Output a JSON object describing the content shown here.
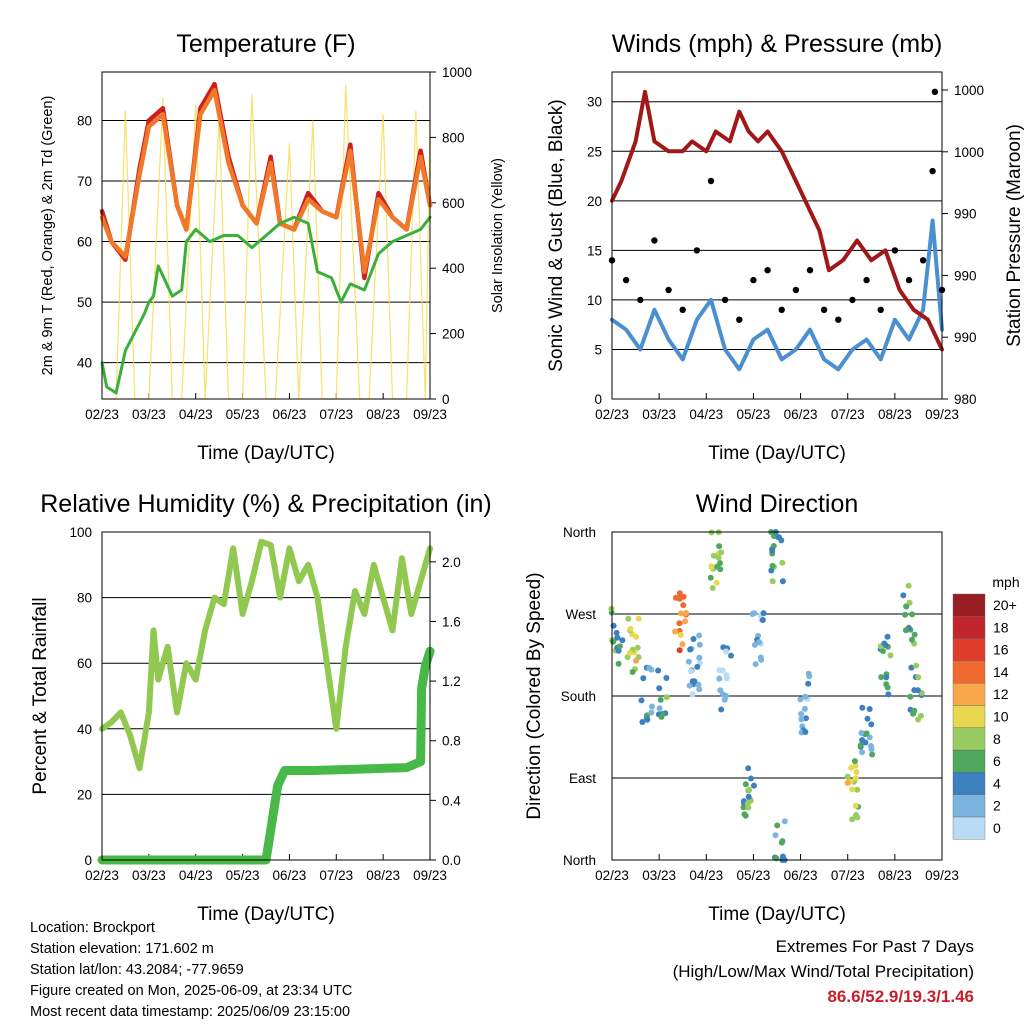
{
  "chart_data": [
    {
      "type": "line",
      "title": "Temperature (F)",
      "xlabel": "Time (Day/UTC)",
      "ylabel": "2m & 9m T (Red, Orange) & 2m Td (Green)",
      "ylabel_right": "Solar Insolation (Yellow)",
      "x_ticks": [
        "02/23",
        "03/23",
        "04/23",
        "05/23",
        "06/23",
        "07/23",
        "08/23",
        "09/23"
      ],
      "ylim": [
        34,
        88
      ],
      "y_ticks": [
        40,
        50,
        60,
        70,
        80
      ],
      "ylim_right": [
        0,
        1000
      ],
      "y_ticks_right": [
        0,
        200,
        400,
        600,
        800,
        1000
      ],
      "grid": true,
      "series": [
        {
          "name": "2m T",
          "color": "#cc2020",
          "x": [
            0,
            0.2,
            0.5,
            0.8,
            1,
            1.3,
            1.6,
            1.8,
            2.1,
            2.4,
            2.7,
            3,
            3.3,
            3.6,
            3.8,
            4.1,
            4.4,
            4.7,
            5,
            5.3,
            5.6,
            5.9,
            6.2,
            6.5,
            6.8,
            7
          ],
          "values": [
            65,
            60,
            57,
            72,
            80,
            82,
            66,
            62,
            82,
            86,
            74,
            66,
            63,
            74,
            63,
            62,
            68,
            65,
            64,
            76,
            54,
            68,
            64,
            62,
            75,
            66
          ]
        },
        {
          "name": "9m T",
          "color": "#f07828",
          "x": [
            0,
            0.2,
            0.5,
            0.8,
            1,
            1.3,
            1.6,
            1.8,
            2.1,
            2.4,
            2.7,
            3,
            3.3,
            3.6,
            3.8,
            4.1,
            4.4,
            4.7,
            5,
            5.3,
            5.6,
            5.9,
            6.2,
            6.5,
            6.8,
            7
          ],
          "values": [
            64,
            60,
            57.5,
            71,
            79,
            81,
            66,
            62,
            81,
            85,
            73,
            66,
            63,
            73,
            63,
            62,
            67,
            65,
            64,
            75,
            55,
            67,
            64,
            62,
            74,
            66
          ]
        },
        {
          "name": "2m Td",
          "color": "#3ab03a",
          "x": [
            0,
            0.1,
            0.3,
            0.5,
            0.7,
            0.9,
            1,
            1.1,
            1.2,
            1.5,
            1.7,
            1.8,
            2,
            2.3,
            2.6,
            2.9,
            3.2,
            3.5,
            3.8,
            4.1,
            4.4,
            4.6,
            4.9,
            5.1,
            5.3,
            5.6,
            5.9,
            6.2,
            6.5,
            6.8,
            7
          ],
          "values": [
            40,
            36,
            35,
            42,
            45,
            48,
            50,
            51,
            56,
            51,
            52,
            60,
            62,
            60,
            61,
            61,
            59,
            61,
            63,
            64,
            63,
            55,
            54,
            50,
            53,
            52,
            58,
            60,
            61,
            62,
            64
          ]
        },
        {
          "name": "Solar Insolation",
          "color": "#f8dc50",
          "axis": "right",
          "x": [
            0,
            0.3,
            0.5,
            0.7,
            1,
            1.3,
            1.5,
            1.7,
            2,
            2.2,
            2.5,
            2.7,
            3,
            3.2,
            3.5,
            3.7,
            4,
            4.2,
            4.5,
            4.7,
            5,
            5.2,
            5.5,
            5.7,
            6,
            6.2,
            6.5,
            6.7,
            6.9,
            7
          ],
          "values": [
            0,
            0,
            880,
            0,
            0,
            920,
            0,
            0,
            900,
            0,
            860,
            0,
            0,
            930,
            0,
            0,
            780,
            0,
            850,
            0,
            0,
            960,
            0,
            0,
            870,
            0,
            0,
            880,
            0,
            850
          ]
        }
      ]
    },
    {
      "type": "line",
      "title": "Winds (mph) & Pressure (mb)",
      "xlabel": "Time (Day/UTC)",
      "ylabel": "Sonic Wind & Gust (Blue, Black)",
      "ylabel_right": "Station Pressure (Maroon)",
      "x_ticks": [
        "02/23",
        "03/23",
        "04/23",
        "05/23",
        "06/23",
        "07/23",
        "08/23",
        "09/23"
      ],
      "ylim": [
        0,
        33
      ],
      "y_ticks": [
        0,
        5,
        10,
        15,
        20,
        25,
        30
      ],
      "y_ticks_right": [
        "980",
        "990",
        "990",
        "990",
        "1000",
        "1000"
      ],
      "grid": true,
      "series": [
        {
          "name": "Sonic Wind",
          "color": "#4a90d0",
          "x": [
            0,
            0.3,
            0.6,
            0.9,
            1.2,
            1.5,
            1.8,
            2.1,
            2.4,
            2.7,
            3,
            3.3,
            3.6,
            3.9,
            4.2,
            4.5,
            4.8,
            5.1,
            5.4,
            5.7,
            6,
            6.3,
            6.6,
            6.8,
            7
          ],
          "values": [
            8,
            7,
            5,
            9,
            6,
            4,
            8,
            10,
            5,
            3,
            6,
            7,
            4,
            5,
            7,
            4,
            3,
            5,
            6,
            4,
            8,
            6,
            9,
            18,
            7
          ]
        },
        {
          "name": "Gust",
          "color": "#000000",
          "x": [
            0,
            0.3,
            0.6,
            0.9,
            1.2,
            1.5,
            1.8,
            2.1,
            2.4,
            2.7,
            3,
            3.3,
            3.6,
            3.9,
            4.2,
            4.5,
            4.8,
            5.1,
            5.4,
            5.7,
            6,
            6.3,
            6.6,
            6.8,
            6.85,
            7
          ],
          "values": [
            14,
            12,
            10,
            16,
            11,
            9,
            15,
            22,
            10,
            8,
            12,
            13,
            9,
            11,
            13,
            9,
            8,
            10,
            12,
            9,
            15,
            12,
            14,
            23,
            31,
            11
          ]
        },
        {
          "name": "Station Pressure",
          "color": "#a01818",
          "axis": "right",
          "x": [
            0,
            0.2,
            0.5,
            0.7,
            0.9,
            1.2,
            1.5,
            1.7,
            2,
            2.2,
            2.5,
            2.7,
            2.9,
            3.1,
            3.3,
            3.6,
            3.9,
            4.1,
            4.4,
            4.6,
            4.9,
            5.2,
            5.5,
            5.8,
            6.1,
            6.4,
            6.7,
            7
          ],
          "values": [
            20,
            22,
            26,
            31,
            26,
            25,
            25,
            26,
            25,
            27,
            26,
            29,
            27,
            26,
            27,
            25,
            22,
            20,
            17,
            13,
            14,
            16,
            14,
            15,
            11,
            9,
            8,
            5
          ]
        }
      ]
    },
    {
      "type": "line",
      "title": "Relative Humidity (%) & Precipitation (in)",
      "xlabel": "Time (Day/UTC)",
      "ylabel": "Percent & Total Rainfall",
      "x_ticks": [
        "02/23",
        "03/23",
        "04/23",
        "05/23",
        "06/23",
        "07/23",
        "08/23",
        "09/23"
      ],
      "ylim": [
        0,
        100
      ],
      "y_ticks": [
        0,
        20,
        40,
        60,
        80,
        100
      ],
      "ylim_right": [
        0,
        2.2
      ],
      "y_ticks_right": [
        "0.0",
        "0.4",
        "0.8",
        "1.2",
        "1.6",
        "2.0"
      ],
      "grid": true,
      "series": [
        {
          "name": "Relative Humidity",
          "color": "#90c850",
          "x": [
            0,
            0.2,
            0.4,
            0.6,
            0.8,
            1,
            1.1,
            1.2,
            1.4,
            1.6,
            1.8,
            2,
            2.2,
            2.4,
            2.6,
            2.8,
            3,
            3.2,
            3.4,
            3.6,
            3.8,
            4,
            4.2,
            4.4,
            4.6,
            4.8,
            5,
            5.2,
            5.4,
            5.6,
            5.8,
            6,
            6.2,
            6.4,
            6.6,
            6.8,
            7
          ],
          "values": [
            40,
            42,
            45,
            38,
            28,
            45,
            70,
            55,
            65,
            45,
            60,
            55,
            70,
            80,
            78,
            95,
            75,
            85,
            97,
            96,
            80,
            95,
            85,
            90,
            80,
            60,
            40,
            65,
            82,
            75,
            90,
            80,
            70,
            92,
            75,
            85,
            95
          ]
        },
        {
          "name": "Total Rainfall",
          "color": "#48b848",
          "axis": "right",
          "x": [
            0,
            1,
            2,
            3,
            3.5,
            3.6,
            3.75,
            3.9,
            4.5,
            5.5,
            6.5,
            6.8,
            6.82,
            6.9,
            7
          ],
          "values": [
            0,
            0,
            0,
            0,
            0,
            0.2,
            0.5,
            0.6,
            0.6,
            0.61,
            0.62,
            0.66,
            1.15,
            1.3,
            1.4
          ]
        }
      ]
    },
    {
      "type": "scatter",
      "title": "Wind Direction",
      "xlabel": "Time (Day/UTC)",
      "ylabel": "Direction (Colored By Speed)",
      "x_ticks": [
        "02/23",
        "03/23",
        "04/23",
        "05/23",
        "06/23",
        "07/23",
        "08/23",
        "09/23"
      ],
      "y_ticks": [
        "North",
        "East",
        "South",
        "West",
        "North"
      ],
      "ylim": [
        0,
        360
      ],
      "grid": true,
      "colorbar": {
        "title": "mph",
        "labels": [
          "20+",
          "18",
          "16",
          "14",
          "12",
          "10",
          "8",
          "6",
          "4",
          "2",
          "0"
        ],
        "colors": [
          "#981e24",
          "#c0262c",
          "#e03c2c",
          "#f06a30",
          "#f8a848",
          "#e8d850",
          "#98cc60",
          "#50a860",
          "#3c80c0",
          "#7cb4e0",
          "#b8dcf4"
        ]
      },
      "clusters": [
        {
          "x": 0.1,
          "dir": 245,
          "speed": 6,
          "n": 14
        },
        {
          "x": 0.45,
          "dir": 235,
          "speed": 9,
          "n": 16
        },
        {
          "x": 0.75,
          "dir": 185,
          "speed": 4,
          "n": 12
        },
        {
          "x": 1.1,
          "dir": 190,
          "speed": 5,
          "n": 10
        },
        {
          "x": 1.45,
          "dir": 260,
          "speed": 13,
          "n": 16
        },
        {
          "x": 1.75,
          "dir": 215,
          "speed": 3,
          "n": 18
        },
        {
          "x": 2.2,
          "dir": 330,
          "speed": 8,
          "n": 16
        },
        {
          "x": 2.4,
          "dir": 200,
          "speed": 2,
          "n": 14
        },
        {
          "x": 2.9,
          "dir": 75,
          "speed": 6,
          "n": 16
        },
        {
          "x": 3.1,
          "dir": 250,
          "speed": 2,
          "n": 14
        },
        {
          "x": 3.5,
          "dir": 340,
          "speed": 6,
          "n": 16
        },
        {
          "x": 3.55,
          "dir": 15,
          "speed": 4,
          "n": 10
        },
        {
          "x": 4.1,
          "dir": 170,
          "speed": 3,
          "n": 14
        },
        {
          "x": 5.1,
          "dir": 75,
          "speed": 9,
          "n": 16
        },
        {
          "x": 5.4,
          "dir": 145,
          "speed": 4,
          "n": 16
        },
        {
          "x": 5.8,
          "dir": 215,
          "speed": 5,
          "n": 14
        },
        {
          "x": 6.3,
          "dir": 270,
          "speed": 7,
          "n": 14
        },
        {
          "x": 6.45,
          "dir": 185,
          "speed": 6,
          "n": 14
        }
      ]
    }
  ],
  "info": {
    "location": "Location: Brockport",
    "elevation": "Station elevation: 171.602 m",
    "latlon": "Station lat/lon: 43.2084; -77.9659",
    "created": "Figure created on Mon, 2025-06-09, at 23:34 UTC",
    "recent": "Most recent data timestamp: 2025/06/09 23:15:00"
  },
  "extremes": {
    "title": "Extremes For Past 7 Days",
    "subtitle": "(High/Low/Max Wind/Total Precipitation)",
    "values": "86.6/52.9/19.3/1.46"
  }
}
